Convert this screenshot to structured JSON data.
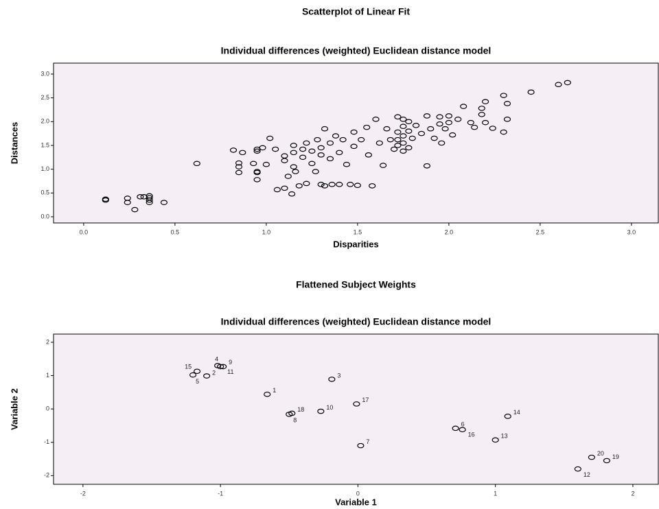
{
  "chart_data": [
    {
      "type": "scatter",
      "title": "Scatterplot of Linear Fit",
      "subtitle": "Individual differences (weighted) Euclidean distance model",
      "x_label": "Disparities",
      "y_label": "Distances",
      "xlim": [
        -0.165,
        3.147
      ],
      "ylim": [
        -0.13,
        3.23
      ],
      "xticks": [
        {
          "value": 0,
          "label": "0.0"
        },
        0.5,
        {
          "value": 1,
          "label": "1.0"
        },
        1.5,
        {
          "value": 2,
          "label": "2.0"
        },
        2.5,
        {
          "value": 3,
          "label": "3.0"
        }
      ],
      "yticks": [
        {
          "value": 0,
          "label": "0.0"
        },
        0.5,
        {
          "value": 1,
          "label": "1.0"
        },
        1.5,
        {
          "value": 2,
          "label": "2.0"
        },
        2.5,
        {
          "value": 3,
          "label": "3.0"
        }
      ],
      "background": "#f5eef5",
      "series": [
        {
          "color": "#000000",
          "x": [
            0.12,
            0.12,
            0.24,
            0.24,
            0.28,
            0.31,
            0.36,
            0.36,
            0.36,
            0.44,
            0.33,
            0.36,
            0.62,
            0.82,
            0.85,
            0.85,
            0.85,
            0.87,
            0.93,
            0.95,
            0.95,
            0.95,
            0.95,
            0.95,
            0.98,
            1.0,
            1.02,
            1.05,
            1.06,
            1.1,
            1.1,
            1.1,
            1.12,
            1.14,
            1.15,
            1.15,
            1.15,
            1.16,
            1.18,
            1.2,
            1.2,
            1.22,
            1.22,
            1.25,
            1.25,
            1.27,
            1.28,
            1.3,
            1.3,
            1.3,
            1.32,
            1.32,
            1.35,
            1.35,
            1.36,
            1.38,
            1.4,
            1.4,
            1.42,
            1.44,
            1.46,
            1.48,
            1.48,
            1.5,
            1.52,
            1.55,
            1.56,
            1.58,
            1.6,
            1.62,
            1.64,
            1.66,
            1.68,
            1.7,
            1.72,
            1.72,
            1.72,
            1.72,
            1.75,
            1.75,
            1.75,
            1.75,
            1.75,
            1.78,
            1.78,
            1.78,
            1.8,
            1.82,
            1.85,
            1.88,
            1.88,
            1.9,
            1.92,
            1.95,
            1.95,
            1.96,
            1.98,
            2.0,
            2.0,
            2.02,
            2.05,
            2.08,
            2.12,
            2.14,
            2.18,
            2.18,
            2.2,
            2.2,
            2.24,
            2.3,
            2.3,
            2.32,
            2.32,
            2.45,
            2.6,
            2.65
          ],
          "y": [
            0.35,
            0.37,
            0.3,
            0.39,
            0.15,
            0.42,
            0.4,
            0.35,
            0.3,
            0.3,
            0.42,
            0.44,
            1.12,
            1.4,
            1.05,
            0.93,
            1.13,
            1.35,
            1.12,
            1.42,
            1.38,
            0.95,
            0.93,
            0.78,
            1.45,
            1.1,
            1.65,
            1.42,
            0.57,
            0.6,
            1.28,
            1.18,
            0.85,
            0.48,
            1.5,
            1.35,
            1.05,
            0.95,
            0.65,
            1.42,
            1.25,
            1.55,
            0.7,
            1.38,
            1.12,
            0.95,
            1.62,
            1.45,
            1.3,
            0.68,
            1.85,
            0.65,
            1.55,
            1.22,
            0.68,
            1.7,
            1.35,
            0.68,
            1.62,
            1.1,
            0.68,
            1.78,
            1.48,
            0.66,
            1.62,
            1.88,
            1.3,
            0.65,
            2.05,
            1.55,
            1.08,
            1.85,
            1.62,
            1.42,
            2.1,
            1.78,
            1.62,
            1.5,
            2.05,
            1.9,
            1.7,
            1.55,
            1.38,
            2.0,
            1.8,
            1.45,
            1.65,
            1.92,
            1.75,
            1.07,
            2.12,
            1.85,
            1.65,
            2.1,
            1.95,
            1.55,
            1.85,
            2.12,
            1.98,
            1.72,
            2.05,
            2.32,
            1.98,
            1.88,
            2.28,
            2.15,
            1.98,
            2.42,
            1.86,
            2.55,
            1.78,
            2.38,
            2.05,
            2.62,
            2.78,
            2.82
          ]
        }
      ]
    },
    {
      "type": "scatter",
      "title": "Flattened Subject Weights",
      "subtitle": "Individual differences (weighted) Euclidean distance model",
      "x_label": "Variable 1",
      "y_label": "Variable 2",
      "xlim": [
        -2.214,
        2.185
      ],
      "ylim": [
        -2.26,
        2.246
      ],
      "xticks": [
        -2,
        -1,
        0,
        1,
        2
      ],
      "yticks": [
        -2,
        -1,
        0,
        1,
        2
      ],
      "background": "#f5eef5",
      "series": [
        {
          "color": "#000000",
          "x": [
            -0.66,
            -1.1,
            -0.19,
            -1.02,
            -1.2,
            0.71,
            0.02,
            -0.5,
            -0.98,
            -0.27,
            -1.0,
            1.6,
            1.0,
            1.09,
            -1.17,
            0.76,
            -0.01,
            -0.48,
            1.81,
            1.7
          ],
          "y": [
            0.44,
            0.99,
            0.89,
            1.3,
            1.02,
            -0.58,
            -1.1,
            -0.16,
            1.27,
            -0.07,
            1.27,
            -1.8,
            -0.93,
            -0.22,
            1.13,
            -0.62,
            0.15,
            -0.13,
            -1.55,
            -1.45
          ],
          "labels": [
            "1",
            "2",
            "3",
            "4",
            "5",
            "6",
            "7",
            "8",
            "9",
            "10",
            "11",
            "12",
            "13",
            "14",
            "15",
            "16",
            "17",
            "18",
            "19",
            "20"
          ]
        }
      ]
    }
  ]
}
